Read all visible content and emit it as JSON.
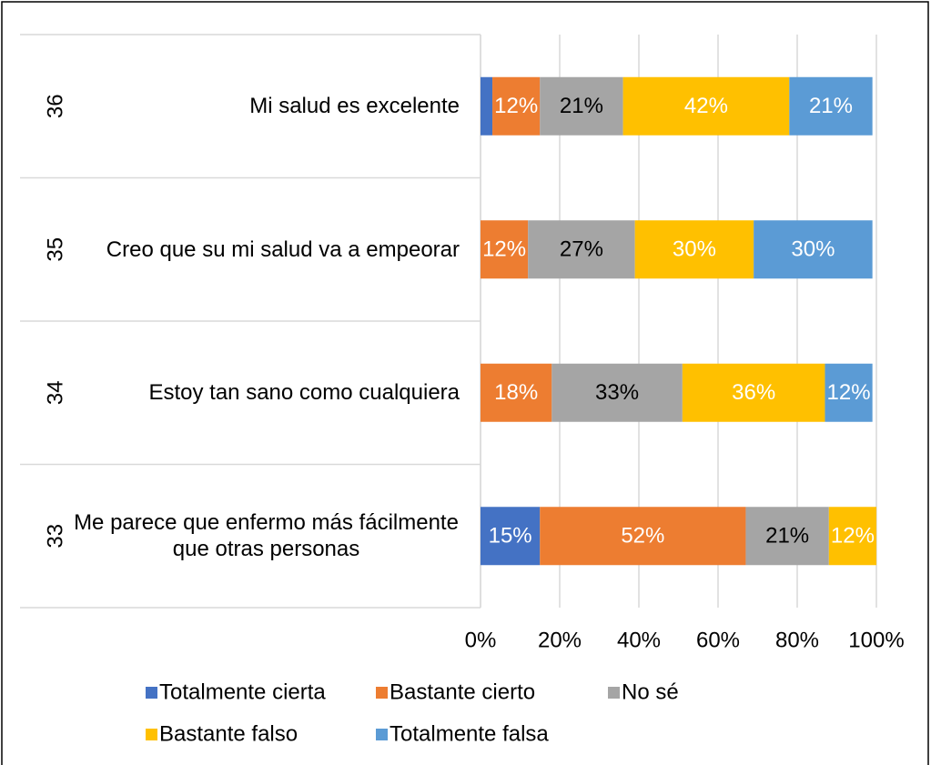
{
  "chart_data": {
    "type": "stacked_barh",
    "groups": [
      "36",
      "35",
      "34",
      "33"
    ],
    "categories": [
      "Mi salud es excelente",
      "Creo que su mi salud va a empeorar",
      "Estoy tan sano como cualquiera",
      "Me parece que enfermo más fácilmente que otras personas"
    ],
    "series": [
      {
        "name": "Totalmente cierta",
        "color": "#4472c4",
        "label_color": "#ffffff",
        "values": [
          3,
          0,
          0,
          15
        ],
        "value_labels": [
          null,
          null,
          null,
          "15%"
        ]
      },
      {
        "name": "Bastante cierto",
        "color": "#ed7d31",
        "label_color": "#ffffff",
        "values": [
          12,
          12,
          18,
          52
        ],
        "value_labels": [
          "12%",
          "12%",
          "18%",
          "52%"
        ]
      },
      {
        "name": "No sé",
        "color": "#a5a5a5",
        "label_color": "#000000",
        "values": [
          21,
          27,
          33,
          21
        ],
        "value_labels": [
          "21%",
          "27%",
          "33%",
          "21%"
        ]
      },
      {
        "name": "Bastante falso",
        "color": "#ffc000",
        "label_color": "#ffffff",
        "values": [
          42,
          30,
          36,
          12
        ],
        "value_labels": [
          "42%",
          "30%",
          "36%",
          "12%"
        ]
      },
      {
        "name": "Totalmente falsa",
        "color": "#5b9bd5",
        "label_color": "#ffffff",
        "values": [
          21,
          30,
          12,
          0
        ],
        "value_labels": [
          "21%",
          "30%",
          "12%",
          null
        ]
      }
    ],
    "xlim": [
      0,
      100
    ],
    "xticks": [
      {
        "value": 0,
        "label": "0%"
      },
      {
        "value": 20,
        "label": "20%"
      },
      {
        "value": 40,
        "label": "40%"
      },
      {
        "value": 60,
        "label": "60%"
      },
      {
        "value": 80,
        "label": "80%"
      },
      {
        "value": 100,
        "label": "100%"
      }
    ],
    "grid": true,
    "legend": "bottom"
  }
}
